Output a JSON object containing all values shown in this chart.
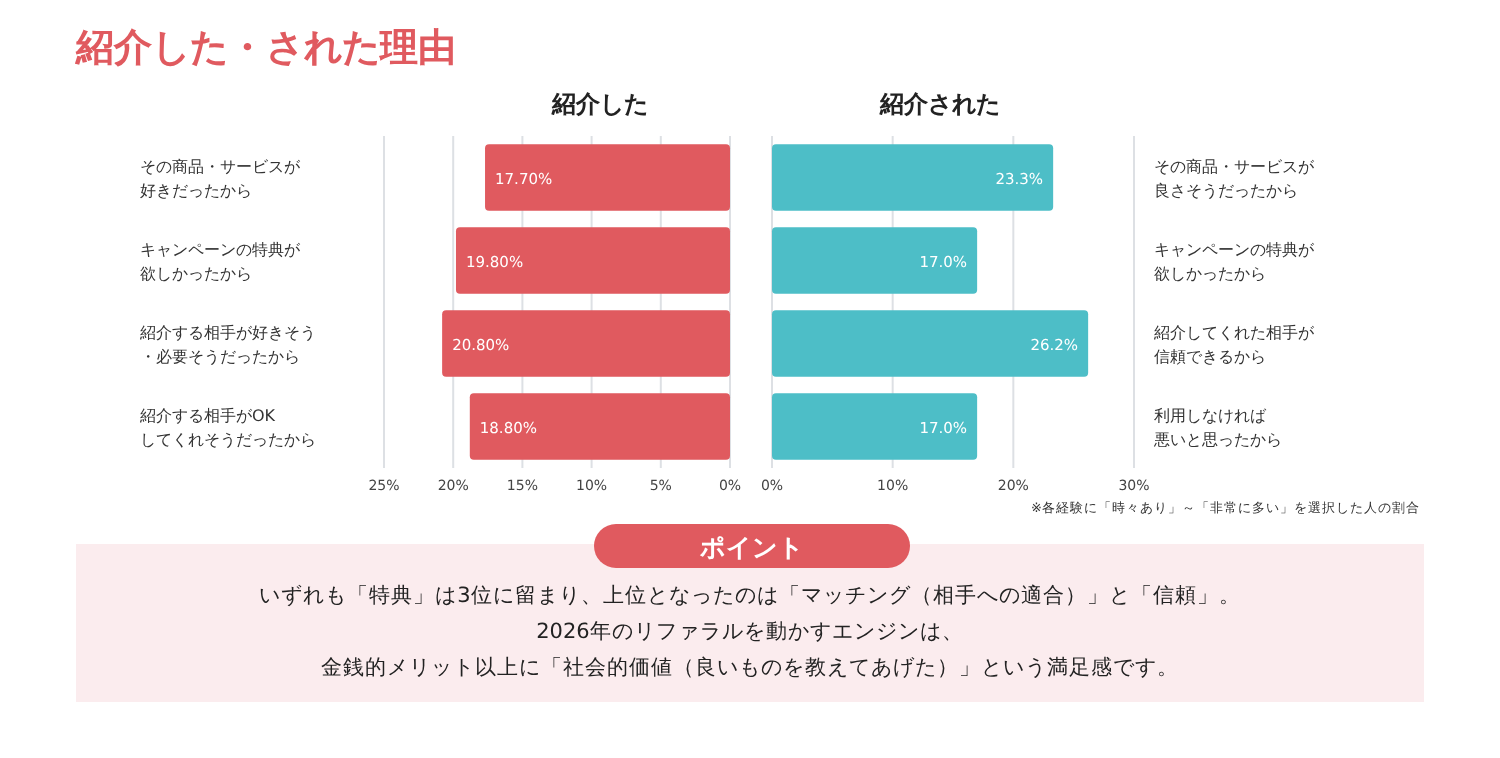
{
  "chart_data": [
    {
      "type": "bar",
      "orientation": "horizontal",
      "title": "紹介した",
      "annotations": [
        "紹介した・された理由"
      ],
      "categories": [
        "その商品・サービスが好きだったから",
        "キャンペーンの特典が欲しかったから",
        "紹介する相手が好きそう・必要そうだったから",
        "紹介する相手がOKしてくれそうだったから"
      ],
      "values": [
        17.7,
        19.8,
        20.8,
        18.8
      ],
      "value_labels": [
        "17.70%",
        "19.80%",
        "20.80%",
        "18.80%"
      ],
      "color": "#e05a5f",
      "xlim": [
        25,
        0
      ],
      "xticks": [
        {
          "value": 25,
          "label": "25%"
        },
        {
          "value": 20,
          "label": "20%"
        },
        {
          "value": 15,
          "label": "15%"
        },
        {
          "value": 10,
          "label": "10%"
        },
        {
          "value": 5,
          "label": "5%"
        },
        {
          "value": 0,
          "label": "0%"
        }
      ],
      "grid": "x"
    },
    {
      "type": "bar",
      "orientation": "horizontal",
      "title": "紹介された",
      "annotations": [
        "※各経験に「時々あり」～「非常に多い」を選択した人の割合"
      ],
      "categories": [
        "その商品・サービスが良さそうだったから",
        "キャンペーンの特典が欲しかったから",
        "紹介してくれた相手が信頼できるから",
        "利用しなければ悪いと思ったから"
      ],
      "values": [
        23.3,
        17.0,
        26.2,
        17.0
      ],
      "value_labels": [
        "23.3%",
        "17.0%",
        "26.2%",
        "17.0%"
      ],
      "color": "#4dbec7",
      "xlim": [
        0,
        30
      ],
      "xticks": [
        {
          "value": 0,
          "label": "0%"
        },
        {
          "value": 10,
          "label": "10%"
        },
        {
          "value": 20,
          "label": "20%"
        },
        {
          "value": 30,
          "label": "30%"
        }
      ],
      "grid": "x"
    },
    {
      "type": "other",
      "title": "ポイント",
      "annotations": [
        "いずれも「特典」は3位に留まり、上位となったのは「マッチング（相手への適合）」と「信頼」。",
        "2026年のリファラルを動かすエンジンは、",
        "金銭的メリット以上に「社会的価値（良いものを教えてあげた）」という満足感です。"
      ]
    }
  ]
}
